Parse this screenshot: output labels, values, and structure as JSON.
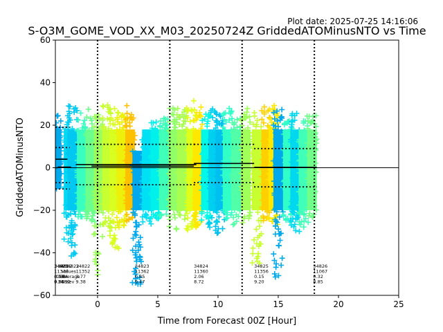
{
  "chart_data": {
    "type": "scatter",
    "title": "S-O3M_GOME_VOD_XX_M03_20250724Z GriddedATOMinusNTO vs Time",
    "plot_date": "Plot date: 2025-07-25 14:16:06",
    "xlabel": "Time from Forecast 00Z [Hour]",
    "ylabel": "GriddedATOMinusNTO",
    "xlim": [
      -3.5,
      25
    ],
    "ylim": [
      -60,
      60
    ],
    "xticks": [
      "0",
      "5",
      "10",
      "15",
      "20",
      "25"
    ],
    "yticks": [
      "60",
      "40",
      "20",
      "0",
      "−20",
      "−40",
      "−60"
    ],
    "grid": false,
    "marker": "plus",
    "vertical_lines": [
      0,
      6,
      12,
      18
    ],
    "point_columns": [
      {
        "x": -3.4,
        "min": -10,
        "max": 25,
        "color": "#00a8ec"
      },
      {
        "x": -2.4,
        "min": -35,
        "max": 24,
        "color": "#00d8f4"
      },
      {
        "x": -2.1,
        "min": -42,
        "max": 30,
        "color": "#00c8f0"
      },
      {
        "x": -1.3,
        "min": -25,
        "max": 26,
        "color": "#38ffc0"
      },
      {
        "x": -0.6,
        "min": -26,
        "max": 28,
        "color": "#6cff8c"
      },
      {
        "x": 0.1,
        "min": -52,
        "max": 25,
        "color": "#9cff5c"
      },
      {
        "x": 0.8,
        "min": -30,
        "max": 30,
        "color": "#c8ff30"
      },
      {
        "x": 1.4,
        "min": -40,
        "max": 28,
        "color": "#d8ff20"
      },
      {
        "x": 2.0,
        "min": -30,
        "max": 26,
        "color": "#ecf00a"
      },
      {
        "x": 2.7,
        "min": -25,
        "max": 30,
        "color": "#ffc000"
      },
      {
        "x": 3.3,
        "min": -55,
        "max": 8,
        "color": "#00a8ec"
      },
      {
        "x": 4.1,
        "min": -28,
        "max": 18,
        "color": "#00e0f4"
      },
      {
        "x": 4.8,
        "min": -25,
        "max": 22,
        "color": "#00f0ec"
      },
      {
        "x": 5.5,
        "min": -23,
        "max": 24,
        "color": "#40ffb8"
      },
      {
        "x": 6.3,
        "min": -30,
        "max": 28,
        "color": "#90ff68"
      },
      {
        "x": 7.0,
        "min": -25,
        "max": 28,
        "color": "#a8ff50"
      },
      {
        "x": 7.8,
        "min": -30,
        "max": 32,
        "color": "#e0ff18"
      },
      {
        "x": 8.3,
        "min": -28,
        "max": 30,
        "color": "#ffe800"
      },
      {
        "x": 9.0,
        "min": -25,
        "max": 26,
        "color": "#00f8e8"
      },
      {
        "x": 9.6,
        "min": -28,
        "max": 28,
        "color": "#00d0f0"
      },
      {
        "x": 10.2,
        "min": -32,
        "max": 26,
        "color": "#00c0f0"
      },
      {
        "x": 10.8,
        "min": -25,
        "max": 28,
        "color": "#30ffc8"
      },
      {
        "x": 11.5,
        "min": -28,
        "max": 26,
        "color": "#50ffa8"
      },
      {
        "x": 12.3,
        "min": -26,
        "max": 28,
        "color": "#a0ff58"
      },
      {
        "x": 13.2,
        "min": -45,
        "max": 26,
        "color": "#c8ff30"
      },
      {
        "x": 14.0,
        "min": -25,
        "max": 30,
        "color": "#ffd000"
      },
      {
        "x": 14.6,
        "min": -28,
        "max": 30,
        "color": "#ffe800"
      },
      {
        "x": 15.0,
        "min": -52,
        "max": 28,
        "color": "#00a8ec"
      },
      {
        "x": 15.8,
        "min": -26,
        "max": 22,
        "color": "#30ffc8"
      },
      {
        "x": 16.4,
        "min": -30,
        "max": 26,
        "color": "#00d8f0"
      },
      {
        "x": 17.1,
        "min": -28,
        "max": 22,
        "color": "#40ffb8"
      },
      {
        "x": 17.8,
        "min": -25,
        "max": 26,
        "color": "#70ff88"
      }
    ],
    "mean_lines": [
      {
        "x": [
          -3.5,
          -3.3
        ],
        "y": 0
      },
      {
        "x": [
          -3.3,
          -2.2
        ],
        "y": 0.3
      },
      {
        "x": [
          -3.5,
          -2.5
        ],
        "y": 4
      },
      {
        "x": [
          -1.8,
          8.2
        ],
        "y": 1.5
      },
      {
        "x": [
          -0.5,
          8.0
        ],
        "y": 0.7
      },
      {
        "x": [
          8.0,
          13.0
        ],
        "y": 2.0
      },
      {
        "x": [
          13.0,
          18.2
        ],
        "y": 0.2
      }
    ],
    "std_lines": [
      {
        "x": [
          -3.5,
          -2.3
        ],
        "y": 19
      },
      {
        "x": [
          -3.5,
          -2.3
        ],
        "y": 9.5
      },
      {
        "x": [
          -3.5,
          -2.3
        ],
        "y": -7
      },
      {
        "x": [
          -3.5,
          -2.3
        ],
        "y": -10
      },
      {
        "x": [
          -1.8,
          8.2
        ],
        "y": 11
      },
      {
        "x": [
          -1.8,
          8.2
        ],
        "y": -8
      },
      {
        "x": [
          8.0,
          13.0
        ],
        "y": 11
      },
      {
        "x": [
          8.0,
          13.0
        ],
        "y": -7
      },
      {
        "x": [
          13.0,
          18.2
        ],
        "y": 9
      },
      {
        "x": [
          13.0,
          18.2
        ],
        "y": -9
      }
    ],
    "stat_annotations": [
      {
        "x": -3.6,
        "lines": [
          "34823",
          "11348",
          "-0.83",
          "9.05"
        ]
      },
      {
        "x": -3.6,
        "lines": [
          "34821",
          "",
          "0.55",
          "0.80"
        ]
      },
      {
        "x": -3.3,
        "lines": [
          "34822",
          "",
          "3.44",
          "14.92"
        ]
      },
      {
        "x": -3.0,
        "lines": [
          "N34822",
          "Values",
          "Average",
          "Stdev 9.38"
        ]
      },
      {
        "x": -1.8,
        "lines": [
          "34822",
          "11352",
          "3.77",
          ""
        ]
      },
      {
        "x": 3.1,
        "lines": [
          "34823",
          "11362",
          "0.85",
          "9.47"
        ]
      },
      {
        "x": 8.0,
        "lines": [
          "34824",
          "11360",
          "2.06",
          "8.72"
        ]
      },
      {
        "x": 13.0,
        "lines": [
          "34825",
          "11356",
          "0.15",
          "9.20"
        ]
      },
      {
        "x": 17.9,
        "lines": [
          "34826",
          "11067",
          "0.32",
          "8.85"
        ]
      }
    ]
  }
}
